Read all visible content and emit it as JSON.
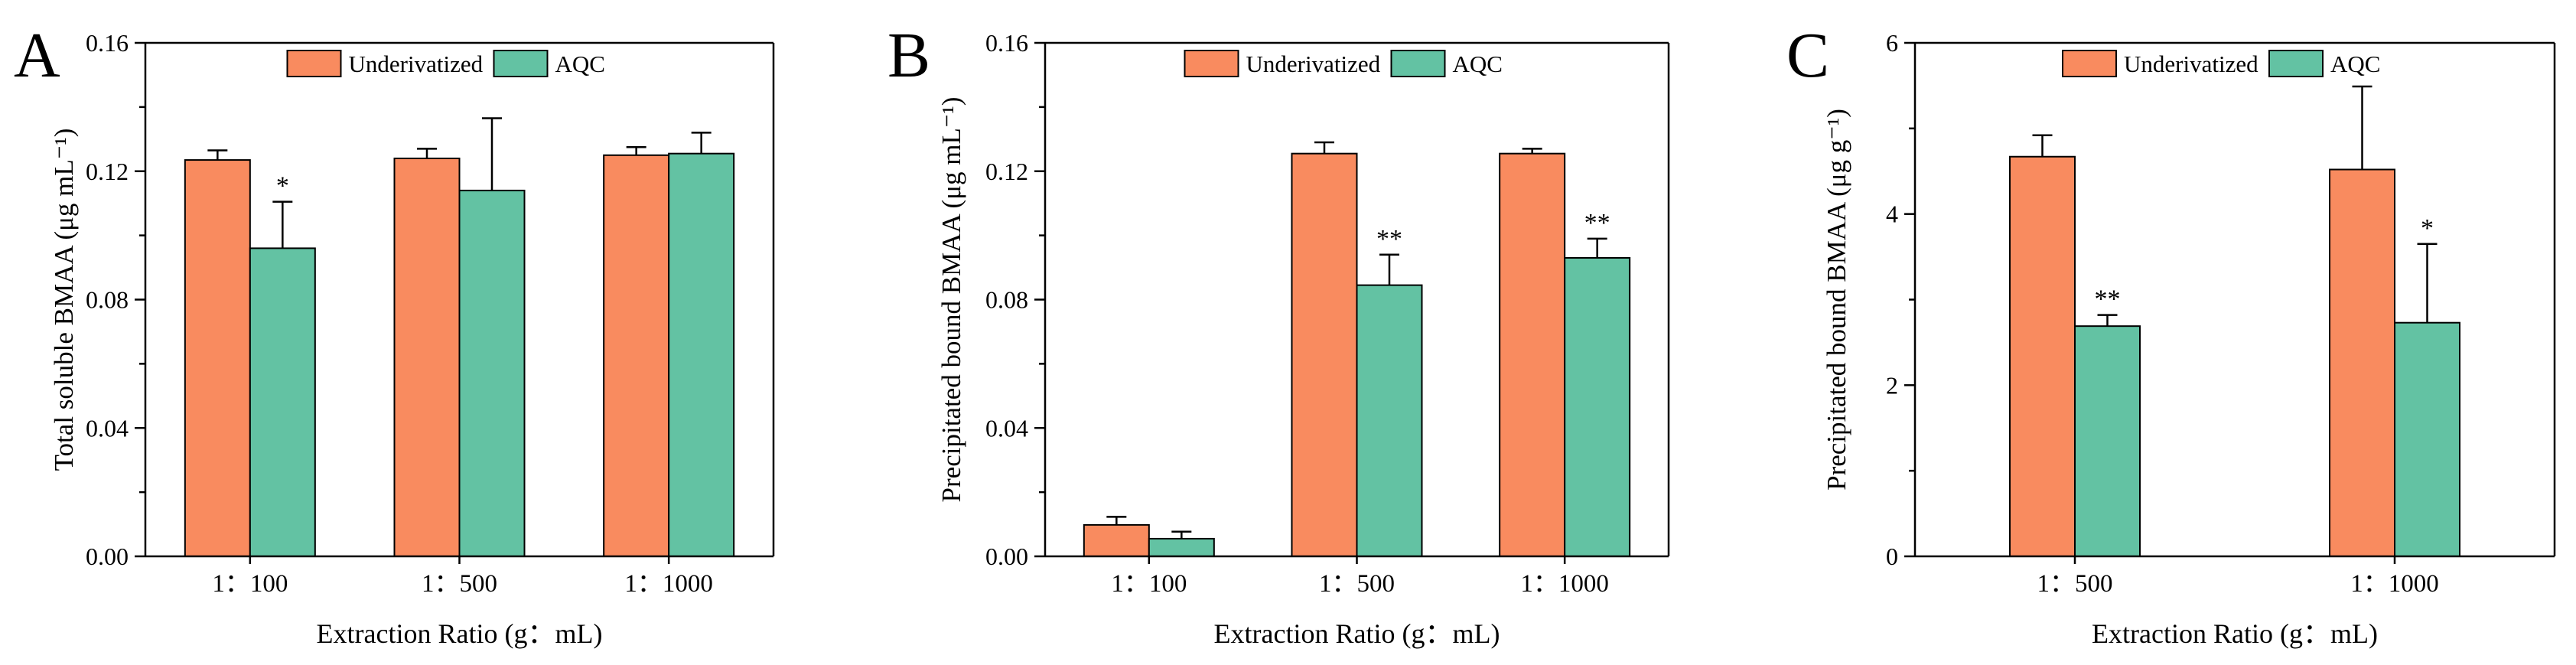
{
  "colors": {
    "underivatized": "#F98B5F",
    "aqc": "#63C2A3",
    "axis": "#000000",
    "error": "#000000"
  },
  "legend_labels": [
    "Underivatized",
    "AQC"
  ],
  "chart_data": [
    {
      "panel": "A",
      "type": "bar",
      "title": "",
      "xlabel": "Extraction Ratio (g：mL)",
      "ylabel": "Total soluble BMAA (μg mL⁻¹)",
      "ylim": [
        0,
        0.16
      ],
      "yticks": [
        "0.00",
        "0.04",
        "0.08",
        "0.12",
        "0.16"
      ],
      "yminor_step": 0.02,
      "categories": [
        "1：100",
        "1：500",
        "1：1000"
      ],
      "legend": "top-center",
      "series": [
        {
          "name": "Underivatized",
          "values": [
            0.1235,
            0.124,
            0.125
          ],
          "errors": [
            0.003,
            0.003,
            0.0025
          ],
          "significance": [
            "",
            "",
            ""
          ]
        },
        {
          "name": "AQC",
          "values": [
            0.096,
            0.114,
            0.1255
          ],
          "errors": [
            0.0145,
            0.0225,
            0.0065
          ],
          "significance": [
            "*",
            "",
            ""
          ]
        }
      ]
    },
    {
      "panel": "B",
      "type": "bar",
      "title": "",
      "xlabel": "Extraction Ratio (g：mL)",
      "ylabel": "Precipitated bound BMAA (μg mL⁻¹)",
      "ylim": [
        0,
        0.16
      ],
      "yticks": [
        "0.00",
        "0.04",
        "0.08",
        "0.12",
        "0.16"
      ],
      "yminor_step": 0.02,
      "categories": [
        "1：100",
        "1：500",
        "1：1000"
      ],
      "legend": "top-center",
      "series": [
        {
          "name": "Underivatized",
          "values": [
            0.0098,
            0.1255,
            0.1255
          ],
          "errors": [
            0.0025,
            0.0035,
            0.0015
          ],
          "significance": [
            "",
            "",
            ""
          ]
        },
        {
          "name": "AQC",
          "values": [
            0.0055,
            0.0845,
            0.093
          ],
          "errors": [
            0.0022,
            0.0095,
            0.006
          ],
          "significance": [
            "",
            "**",
            "**"
          ]
        }
      ]
    },
    {
      "panel": "C",
      "type": "bar",
      "title": "",
      "xlabel": "Extraction Ratio (g：mL)",
      "ylabel": "Precipitated bound BMAA (μg g⁻¹)",
      "ylim": [
        0,
        6
      ],
      "yticks": [
        "0",
        "2",
        "4",
        "6"
      ],
      "yminor_step": 1,
      "categories": [
        "1：500",
        "1：1000"
      ],
      "legend": "top-center",
      "series": [
        {
          "name": "Underivatized",
          "values": [
            4.67,
            4.52
          ],
          "errors": [
            0.25,
            0.97
          ],
          "significance": [
            "",
            ""
          ]
        },
        {
          "name": "AQC",
          "values": [
            2.69,
            2.73
          ],
          "errors": [
            0.13,
            0.92
          ],
          "significance": [
            "**",
            "*"
          ]
        }
      ]
    }
  ]
}
